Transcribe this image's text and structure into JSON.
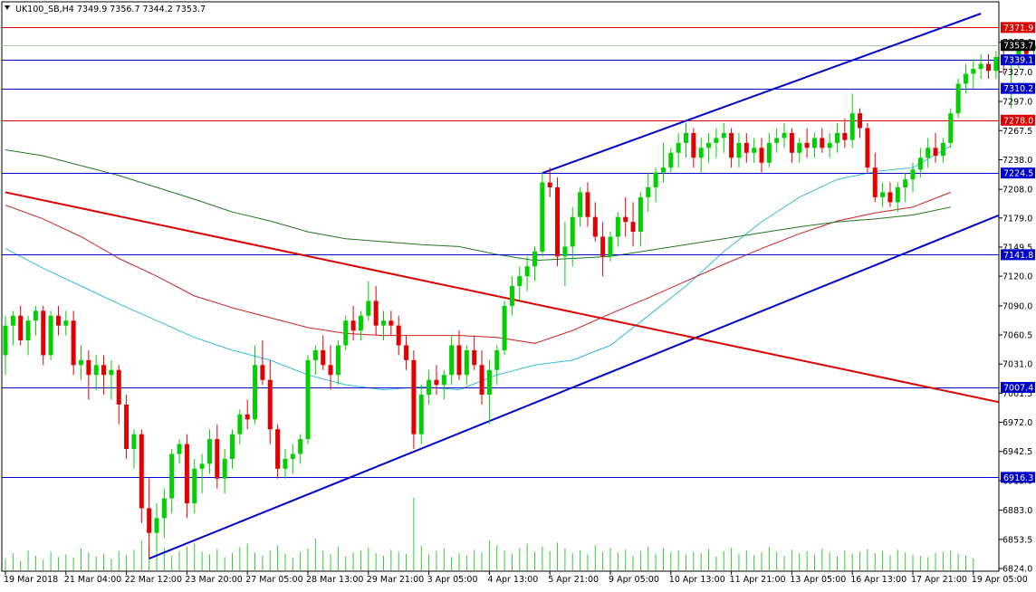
{
  "header": {
    "symbol": "UK100_SB,H4",
    "ohlc": "7349.9 7356.7 7344.2 7353.7"
  },
  "colors": {
    "background": "#ffffff",
    "frame": "#000000",
    "bull_candle": "#00d000",
    "bear_candle": "#e00000",
    "volume": "#33cc33",
    "ma_fast": "#33bbdd",
    "ma_mid": "#cc2222",
    "ma_slow": "#227722",
    "trend_blue": "#0000cc",
    "trend_red": "#dd0000",
    "hline_blue": "#0000cc",
    "hline_red": "#dd0000",
    "last_price_line": "#aac8aa",
    "label_blue_bg": "#0000cc",
    "label_red_bg": "#dd0000",
    "label_last_bg": "#000000"
  },
  "chart_data": {
    "type": "candlestick",
    "timeframe": "H4",
    "ylim": [
      6824.0,
      7386.0
    ],
    "y_ticks": [
      "7357.0",
      "7327.0",
      "7297.0",
      "7267.5",
      "7238.0",
      "7208.0",
      "7179.0",
      "7149.5",
      "7120.0",
      "7090.0",
      "7060.5",
      "7031.0",
      "7001.5",
      "6972.0",
      "6942.5",
      "6913.0",
      "6883.0",
      "6853.5",
      "6824.0"
    ],
    "x_labels": [
      "19 Mar 2018",
      "21 Mar 04:00",
      "22 Mar 12:00",
      "23 Mar 20:00",
      "27 Mar 05:00",
      "28 Mar 13:00",
      "29 Mar 21:00",
      "3 Apr 05:00",
      "4 Apr 13:00",
      "5 Apr 21:00",
      "9 Apr 05:00",
      "10 Apr 13:00",
      "11 Apr 21:00",
      "13 Apr 05:00",
      "16 Apr 13:00",
      "17 Apr 21:00",
      "19 Apr 05:00"
    ],
    "x_label_bar_index": [
      0,
      8,
      16,
      24,
      32,
      40,
      48,
      56,
      64,
      72,
      80,
      88,
      96,
      104,
      112,
      120,
      128
    ],
    "horizontal_levels": [
      {
        "price": 7371.9,
        "label": "7371.9",
        "color": "red"
      },
      {
        "price": 7339.1,
        "label": "7339.1",
        "color": "blue"
      },
      {
        "price": 7310.2,
        "label": "7310.2",
        "color": "blue"
      },
      {
        "price": 7278.0,
        "label": "7278.0",
        "color": "red"
      },
      {
        "price": 7224.5,
        "label": "7224.5",
        "color": "blue"
      },
      {
        "price": 7141.8,
        "label": "7141.8",
        "color": "blue"
      },
      {
        "price": 7007.4,
        "label": "7007.4",
        "color": "blue"
      },
      {
        "price": 6916.3,
        "label": "6916.3",
        "color": "blue"
      }
    ],
    "last_price": {
      "price": 7353.7,
      "label": "7353.7"
    },
    "trendlines": [
      {
        "name": "upper-channel",
        "color": "blue",
        "from": {
          "bar": 71,
          "price": 7224.5
        },
        "to": {
          "bar": 129,
          "price": 7386.0
        }
      },
      {
        "name": "lower-channel",
        "color": "blue",
        "from": {
          "bar": 19,
          "price": 6834.0
        },
        "to": {
          "bar": 136,
          "price": 7196.0
        }
      },
      {
        "name": "falling-line",
        "color": "red",
        "from": {
          "bar": 0,
          "price": 7205.0
        },
        "to": {
          "bar": 136,
          "price": 6985.0
        }
      }
    ],
    "candles": [
      [
        7040,
        7080,
        7020,
        7070
      ],
      [
        7070,
        7085,
        7050,
        7080
      ],
      [
        7080,
        7090,
        7050,
        7055
      ],
      [
        7055,
        7080,
        7040,
        7075
      ],
      [
        7075,
        7090,
        7060,
        7085
      ],
      [
        7085,
        7090,
        7030,
        7040
      ],
      [
        7040,
        7085,
        7035,
        7080
      ],
      [
        7080,
        7090,
        7060,
        7070
      ],
      [
        7070,
        7085,
        7060,
        7075
      ],
      [
        7075,
        7085,
        7020,
        7030
      ],
      [
        7030,
        7050,
        7015,
        7035
      ],
      [
        7035,
        7045,
        6995,
        7020
      ],
      [
        7020,
        7040,
        7005,
        7030
      ],
      [
        7030,
        7040,
        7000,
        7020
      ],
      [
        7020,
        7035,
        6995,
        7025
      ],
      [
        7025,
        7030,
        6970,
        6990
      ],
      [
        6990,
        7000,
        6935,
        6945
      ],
      [
        6945,
        6965,
        6925,
        6960
      ],
      [
        6960,
        6965,
        6870,
        6885
      ],
      [
        6885,
        6915,
        6835,
        6860
      ],
      [
        6860,
        6890,
        6840,
        6875
      ],
      [
        6875,
        6905,
        6855,
        6895
      ],
      [
        6895,
        6945,
        6880,
        6940
      ],
      [
        6940,
        6955,
        6930,
        6950
      ],
      [
        6950,
        6960,
        6875,
        6890
      ],
      [
        6890,
        6935,
        6880,
        6925
      ],
      [
        6925,
        6940,
        6900,
        6930
      ],
      [
        6930,
        6965,
        6920,
        6955
      ],
      [
        6955,
        6970,
        6905,
        6915
      ],
      [
        6915,
        6945,
        6900,
        6935
      ],
      [
        6935,
        6965,
        6925,
        6960
      ],
      [
        6960,
        6985,
        6950,
        6980
      ],
      [
        6980,
        6995,
        6965,
        6975
      ],
      [
        6975,
        7050,
        6970,
        7030
      ],
      [
        7030,
        7055,
        7010,
        7015
      ],
      [
        7015,
        7035,
        6950,
        6965
      ],
      [
        6965,
        6970,
        6915,
        6925
      ],
      [
        6925,
        6945,
        6915,
        6935
      ],
      [
        6935,
        6950,
        6920,
        6940
      ],
      [
        6940,
        6960,
        6930,
        6955
      ],
      [
        6955,
        7040,
        6950,
        7035
      ],
      [
        7035,
        7050,
        7020,
        7045
      ],
      [
        7045,
        7060,
        7025,
        7030
      ],
      [
        7030,
        7050,
        7005,
        7020
      ],
      [
        7020,
        7055,
        7010,
        7050
      ],
      [
        7050,
        7080,
        7045,
        7075
      ],
      [
        7075,
        7090,
        7055,
        7065
      ],
      [
        7065,
        7085,
        7055,
        7080
      ],
      [
        7080,
        7115,
        7075,
        7095
      ],
      [
        7095,
        7110,
        7060,
        7070
      ],
      [
        7070,
        7085,
        7055,
        7075
      ],
      [
        7075,
        7085,
        7060,
        7070
      ],
      [
        7070,
        7080,
        7040,
        7050
      ],
      [
        7050,
        7060,
        7025,
        7035
      ],
      [
        7035,
        7045,
        6945,
        6960
      ],
      [
        6960,
        7010,
        6950,
        7000
      ],
      [
        7000,
        7025,
        6990,
        7015
      ],
      [
        7015,
        7030,
        7000,
        7010
      ],
      [
        7010,
        7025,
        6995,
        7020
      ],
      [
        7020,
        7060,
        7010,
        7050
      ],
      [
        7050,
        7065,
        7015,
        7020
      ],
      [
        7020,
        7050,
        7010,
        7045
      ],
      [
        7045,
        7060,
        7025,
        7030
      ],
      [
        7030,
        7045,
        6990,
        7000
      ],
      [
        7000,
        7035,
        6970,
        7025
      ],
      [
        7025,
        7050,
        7010,
        7045
      ],
      [
        7045,
        7095,
        7040,
        7090
      ],
      [
        7090,
        7120,
        7080,
        7110
      ],
      [
        7110,
        7130,
        7095,
        7120
      ],
      [
        7120,
        7140,
        7105,
        7130
      ],
      [
        7130,
        7150,
        7115,
        7145
      ],
      [
        7145,
        7225,
        7140,
        7215
      ],
      [
        7215,
        7230,
        7200,
        7210
      ],
      [
        7210,
        7220,
        7130,
        7140
      ],
      [
        7140,
        7175,
        7110,
        7150
      ],
      [
        7150,
        7190,
        7130,
        7180
      ],
      [
        7180,
        7210,
        7170,
        7205
      ],
      [
        7205,
        7215,
        7170,
        7180
      ],
      [
        7180,
        7195,
        7155,
        7160
      ],
      [
        7160,
        7175,
        7120,
        7140
      ],
      [
        7140,
        7165,
        7135,
        7160
      ],
      [
        7160,
        7185,
        7150,
        7180
      ],
      [
        7180,
        7200,
        7160,
        7175
      ],
      [
        7175,
        7195,
        7150,
        7165
      ],
      [
        7165,
        7205,
        7150,
        7200
      ],
      [
        7200,
        7225,
        7185,
        7210
      ],
      [
        7210,
        7230,
        7195,
        7225
      ],
      [
        7225,
        7255,
        7215,
        7230
      ],
      [
        7230,
        7250,
        7225,
        7245
      ],
      [
        7245,
        7265,
        7230,
        7255
      ],
      [
        7255,
        7275,
        7240,
        7265
      ],
      [
        7265,
        7270,
        7230,
        7240
      ],
      [
        7240,
        7260,
        7225,
        7250
      ],
      [
        7250,
        7265,
        7235,
        7255
      ],
      [
        7255,
        7270,
        7240,
        7260
      ],
      [
        7260,
        7275,
        7245,
        7265
      ],
      [
        7265,
        7270,
        7230,
        7240
      ],
      [
        7240,
        7265,
        7230,
        7255
      ],
      [
        7255,
        7265,
        7235,
        7245
      ],
      [
        7245,
        7260,
        7235,
        7250
      ],
      [
        7250,
        7260,
        7225,
        7235
      ],
      [
        7235,
        7265,
        7230,
        7255
      ],
      [
        7255,
        7270,
        7245,
        7260
      ],
      [
        7260,
        7275,
        7250,
        7265
      ],
      [
        7265,
        7270,
        7235,
        7245
      ],
      [
        7245,
        7260,
        7235,
        7255
      ],
      [
        7255,
        7270,
        7240,
        7250
      ],
      [
        7250,
        7265,
        7240,
        7260
      ],
      [
        7260,
        7270,
        7245,
        7250
      ],
      [
        7250,
        7265,
        7240,
        7255
      ],
      [
        7255,
        7275,
        7245,
        7265
      ],
      [
        7265,
        7280,
        7250,
        7258
      ],
      [
        7258,
        7305,
        7250,
        7285
      ],
      [
        7285,
        7290,
        7260,
        7270
      ],
      [
        7270,
        7275,
        7225,
        7230
      ],
      [
        7230,
        7245,
        7195,
        7200
      ],
      [
        7200,
        7215,
        7190,
        7205
      ],
      [
        7205,
        7215,
        7190,
        7195
      ],
      [
        7195,
        7215,
        7185,
        7210
      ],
      [
        7210,
        7225,
        7195,
        7218
      ],
      [
        7218,
        7235,
        7205,
        7228
      ],
      [
        7228,
        7250,
        7220,
        7240
      ],
      [
        7240,
        7260,
        7230,
        7250
      ],
      [
        7250,
        7265,
        7235,
        7242
      ],
      [
        7242,
        7260,
        7235,
        7255
      ],
      [
        7255,
        7290,
        7250,
        7285
      ],
      [
        7285,
        7320,
        7280,
        7315
      ],
      [
        7315,
        7335,
        7305,
        7325
      ],
      [
        7325,
        7340,
        7310,
        7330
      ],
      [
        7330,
        7345,
        7320,
        7335
      ],
      [
        7335,
        7345,
        7320,
        7328
      ],
      [
        7328,
        7348,
        7320,
        7342
      ],
      [
        7342,
        7352,
        7325,
        7335
      ],
      [
        7335,
        7345,
        7290,
        7340
      ],
      [
        7340,
        7360,
        7330,
        7350
      ],
      [
        7350,
        7358,
        7335,
        7345
      ],
      [
        7349.9,
        7356.7,
        7344.2,
        7353.7
      ]
    ],
    "volume": [
      18,
      26,
      14,
      30,
      22,
      16,
      28,
      20,
      24,
      19,
      33,
      27,
      21,
      25,
      17,
      29,
      23,
      31,
      45,
      38,
      26,
      34,
      22,
      29,
      36,
      41,
      28,
      24,
      32,
      20,
      26,
      35,
      40,
      27,
      22,
      30,
      38,
      25,
      19,
      28,
      33,
      48,
      29,
      24,
      36,
      21,
      27,
      30,
      34,
      26,
      22,
      31,
      28,
      25,
      110,
      37,
      24,
      29,
      33,
      20,
      26,
      22,
      31,
      27,
      45,
      38,
      30,
      25,
      34,
      40,
      28,
      36,
      29,
      42,
      33,
      26,
      30,
      24,
      38,
      28,
      34,
      27,
      31,
      22,
      29,
      36,
      25,
      33,
      27,
      30,
      24,
      28,
      26,
      32,
      21,
      29,
      34,
      25,
      30,
      23,
      27,
      35,
      28,
      22,
      31,
      26,
      29,
      24,
      33,
      27,
      21,
      30,
      25,
      28,
      32,
      26,
      29,
      23,
      31,
      27,
      24,
      22,
      20,
      26,
      28,
      30,
      25,
      22,
      18
    ],
    "moving_averages": [
      {
        "color": "ma_fast",
        "values": [
          7148,
          7128,
          7110,
          7092,
          7075,
          7058,
          7045,
          7035,
          7020,
          7010,
          7005,
          7008,
          7005,
          7020,
          7030,
          7035,
          7050,
          7080,
          7110,
          7145,
          7175,
          7200,
          7218,
          7226,
          7230,
          7252
        ]
      },
      {
        "color": "ma_mid",
        "values": [
          7192,
          7178,
          7160,
          7138,
          7120,
          7100,
          7088,
          7078,
          7068,
          7062,
          7060,
          7060,
          7060,
          7058,
          7052,
          7065,
          7082,
          7098,
          7115,
          7132,
          7148,
          7163,
          7176,
          7184,
          7190,
          7205
        ]
      },
      {
        "color": "ma_slow",
        "values": [
          7248,
          7242,
          7232,
          7222,
          7210,
          7198,
          7185,
          7176,
          7165,
          7158,
          7155,
          7152,
          7150,
          7142,
          7136,
          7138,
          7140,
          7146,
          7152,
          7158,
          7164,
          7170,
          7175,
          7178,
          7182,
          7190
        ]
      }
    ]
  }
}
